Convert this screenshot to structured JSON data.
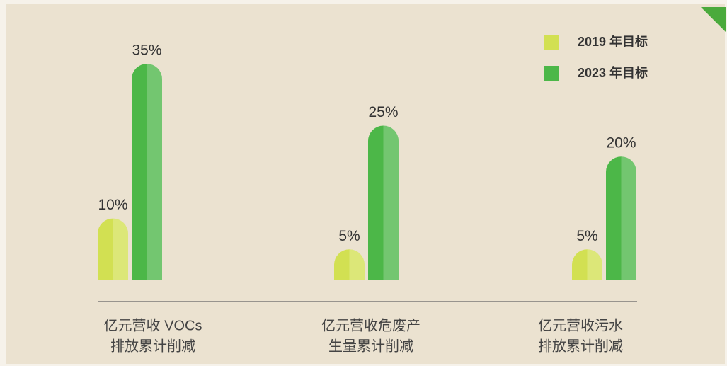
{
  "chart_data": {
    "type": "bar",
    "categories": [
      [
        "亿元营收 VOCs",
        "排放累计削减"
      ],
      [
        "亿元营收危废产",
        "生量累计削减"
      ],
      [
        "亿元营收污水",
        "排放累计削减"
      ]
    ],
    "series": [
      {
        "name": "2019 年目标",
        "color": "#d2e052",
        "values": [
          10,
          5,
          5
        ],
        "value_labels": [
          "10%",
          "5%",
          "5%"
        ]
      },
      {
        "name": "2023 年目标",
        "color": "#4cb748",
        "values": [
          35,
          25,
          20
        ],
        "value_labels": [
          "35%",
          "25%",
          "20%"
        ]
      }
    ],
    "legend": "top-right"
  }
}
